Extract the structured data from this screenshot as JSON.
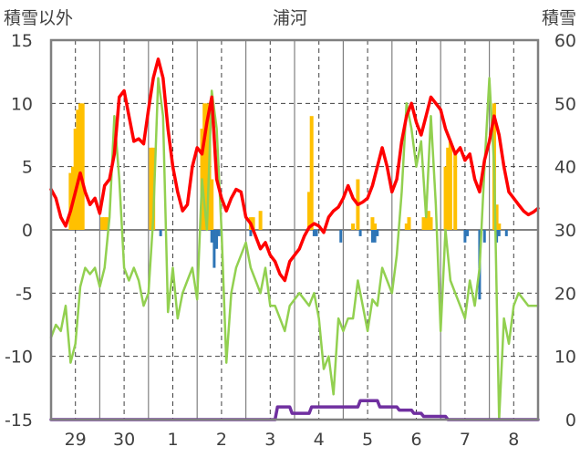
{
  "chart_data": {
    "type": "line",
    "title": "浦河",
    "left_axis_label": "積雪以外",
    "right_axis_label": "積雪",
    "left_ylim": [
      -15,
      15
    ],
    "right_ylim": [
      0,
      60
    ],
    "left_ticks": [
      "15",
      "10",
      "5",
      "0",
      "-5",
      "-10",
      "-15"
    ],
    "right_ticks": [
      "60",
      "50",
      "40",
      "30",
      "20",
      "10",
      "0"
    ],
    "x_range": [
      0,
      10
    ],
    "days": [
      "29",
      "30",
      "1",
      "2",
      "3",
      "4",
      "5",
      "6",
      "7",
      "8"
    ],
    "grid": true,
    "colors": {
      "temperature": "#ff0000",
      "wind": "#92d050",
      "precipitation": "#ffc000",
      "snow_change": "#2e75b6",
      "snow_depth": "#7030a0",
      "axis": "#7f7f7f",
      "grid": "#404040"
    },
    "series": [
      {
        "key": "temperature",
        "axis": "left",
        "x": [
          0,
          0.1,
          0.2,
          0.3,
          0.4,
          0.5,
          0.6,
          0.7,
          0.8,
          0.9,
          1.0,
          1.1,
          1.2,
          1.3,
          1.4,
          1.5,
          1.6,
          1.7,
          1.8,
          1.9,
          2.0,
          2.1,
          2.2,
          2.3,
          2.4,
          2.5,
          2.6,
          2.7,
          2.8,
          2.9,
          3.0,
          3.1,
          3.2,
          3.3,
          3.4,
          3.5,
          3.6,
          3.7,
          3.8,
          3.9,
          4.0,
          4.1,
          4.2,
          4.3,
          4.4,
          4.5,
          4.6,
          4.7,
          4.8,
          4.9,
          5.0,
          5.1,
          5.2,
          5.3,
          5.4,
          5.5,
          5.6,
          5.7,
          5.8,
          5.9,
          6.0,
          6.1,
          6.2,
          6.3,
          6.4,
          6.5,
          6.6,
          6.7,
          6.8,
          6.9,
          7.0,
          7.1,
          7.2,
          7.3,
          7.4,
          7.5,
          7.6,
          7.7,
          7.8,
          7.9,
          8.0,
          8.1,
          8.2,
          8.3,
          8.4,
          8.5,
          8.6,
          8.7,
          8.8,
          8.9,
          9.0,
          9.1,
          9.2,
          9.3,
          9.4,
          9.5,
          9.6,
          9.7,
          9.8,
          9.9,
          10.0
        ],
        "values": [
          3.2,
          2.5,
          1.0,
          0.3,
          1.5,
          3.0,
          4.5,
          3.0,
          2.0,
          2.5,
          1.3,
          3.5,
          4.0,
          6.0,
          10.5,
          11.0,
          9.0,
          7.0,
          7.2,
          6.8,
          9.5,
          12.0,
          13.5,
          12.0,
          8.0,
          5.0,
          3.0,
          1.5,
          2.0,
          5.0,
          6.5,
          6.0,
          8.5,
          10.5,
          4.0,
          2.5,
          1.5,
          2.5,
          3.2,
          3.0,
          1.0,
          0.5,
          -0.5,
          -1.5,
          -1.0,
          -2.0,
          -2.5,
          -3.5,
          -4.0,
          -2.5,
          -2.0,
          -1.5,
          -0.5,
          0.2,
          0.5,
          0.3,
          -0.2,
          1.0,
          1.5,
          1.8,
          2.5,
          3.5,
          2.5,
          2.0,
          2.2,
          2.5,
          3.5,
          5.0,
          6.5,
          5.0,
          3.0,
          4.0,
          7.0,
          9.0,
          10.0,
          8.5,
          7.5,
          9.0,
          10.5,
          10.0,
          9.5,
          8.0,
          7.0,
          6.0,
          6.5,
          5.5,
          6.0,
          4.0,
          3.0,
          5.5,
          7.0,
          9.0,
          7.5,
          5.0,
          3.0,
          2.5,
          2.0,
          1.5,
          1.2,
          1.4,
          1.7
        ]
      },
      {
        "key": "wind",
        "axis": "left",
        "x": [
          0,
          0.1,
          0.2,
          0.3,
          0.4,
          0.5,
          0.6,
          0.7,
          0.8,
          0.9,
          1.0,
          1.1,
          1.2,
          1.3,
          1.4,
          1.5,
          1.6,
          1.7,
          1.8,
          1.9,
          2.0,
          2.1,
          2.2,
          2.3,
          2.4,
          2.5,
          2.6,
          2.7,
          2.8,
          2.9,
          3.0,
          3.1,
          3.2,
          3.3,
          3.4,
          3.5,
          3.6,
          3.7,
          3.8,
          3.9,
          4.0,
          4.1,
          4.2,
          4.3,
          4.4,
          4.5,
          4.6,
          4.7,
          4.8,
          4.9,
          5.0,
          5.1,
          5.2,
          5.3,
          5.4,
          5.5,
          5.6,
          5.7,
          5.8,
          5.9,
          6.0,
          6.1,
          6.2,
          6.3,
          6.4,
          6.5,
          6.6,
          6.7,
          6.8,
          6.9,
          7.0,
          7.1,
          7.2,
          7.3,
          7.4,
          7.5,
          7.6,
          7.7,
          7.8,
          7.9,
          8.0,
          8.1,
          8.2,
          8.3,
          8.4,
          8.5,
          8.6,
          8.7,
          8.8,
          8.9,
          9.0,
          9.1,
          9.2,
          9.3,
          9.4,
          9.5,
          9.6,
          9.7,
          9.8,
          9.9,
          10.0
        ],
        "values": [
          -8.5,
          -7.5,
          -8.0,
          -6.0,
          -10.5,
          -9.0,
          -4.5,
          -3.0,
          -3.5,
          -3.0,
          -4.5,
          -3.0,
          1.0,
          9.0,
          4.0,
          -3.0,
          -4.0,
          -3.0,
          -4.0,
          -6.0,
          -5.0,
          1.0,
          12.0,
          9.0,
          -6.5,
          -3.0,
          -7.0,
          -5.0,
          -4.0,
          -3.0,
          -5.5,
          4.0,
          0.0,
          11.0,
          8.0,
          0.0,
          -10.5,
          -5.0,
          -3.0,
          -2.0,
          -1.0,
          -3.0,
          -4.0,
          -5.0,
          -3.0,
          -6.0,
          -6.0,
          -7.0,
          -8.0,
          -6.0,
          -5.5,
          -5.0,
          -5.5,
          -6.0,
          -5.0,
          -7.0,
          -11.0,
          -10.0,
          -13.0,
          -7.0,
          -8.0,
          -7.0,
          -7.0,
          -4.0,
          -6.0,
          -8.0,
          -5.5,
          -6.0,
          -3.0,
          -4.0,
          -5.0,
          -2.0,
          3.0,
          10.0,
          8.0,
          5.0,
          7.0,
          1.0,
          9.0,
          2.0,
          -8.0,
          0.0,
          -4.0,
          -5.0,
          -6.0,
          -7.0,
          -4.0,
          -6.0,
          -3.0,
          5.0,
          12.0,
          5.0,
          -15.0,
          -7.0,
          -9.0,
          -6.0,
          -5.0,
          -5.5,
          -6.0,
          -6.0,
          -6.0
        ]
      },
      {
        "key": "snow_depth",
        "axis": "right",
        "x": [
          0,
          4.6,
          4.65,
          4.9,
          4.95,
          5.3,
          5.35,
          6.3,
          6.35,
          6.7,
          6.75,
          7.1,
          7.15,
          7.4,
          7.45,
          7.6,
          7.65,
          7.9,
          7.95,
          8.1,
          8.15,
          10.0
        ],
        "values": [
          0,
          0,
          2,
          2,
          1,
          1,
          2,
          2,
          3,
          3,
          2,
          2,
          1.5,
          1.5,
          1,
          1,
          0.5,
          0.5,
          0.5,
          0.5,
          0,
          0
        ]
      }
    ],
    "precipitation_bars": {
      "axis": "left",
      "x": [
        0.4,
        0.45,
        0.5,
        0.55,
        0.6,
        0.65,
        1.05,
        1.1,
        1.15,
        2.05,
        2.1,
        3.1,
        3.15,
        3.2,
        3.25,
        3.3,
        4.1,
        4.15,
        4.3,
        5.3,
        5.35,
        6.2,
        6.3,
        6.6,
        6.65,
        7.3,
        7.35,
        7.65,
        7.7,
        7.75,
        7.8,
        8.1,
        8.15,
        8.2,
        8.3,
        9.1,
        9.15,
        9.2
      ],
      "values": [
        4.5,
        5.0,
        8.0,
        9.5,
        10.0,
        10.0,
        1.0,
        1.0,
        1.0,
        6.5,
        6.5,
        8.0,
        10.0,
        10.0,
        9.5,
        4.0,
        1.0,
        1.0,
        1.5,
        3.0,
        9.0,
        0.5,
        4.0,
        1.0,
        0.5,
        0.5,
        1.0,
        1.0,
        1.0,
        1.5,
        1.0,
        5.0,
        6.5,
        7.0,
        6.0,
        10.0,
        2.0,
        0.5
      ]
    },
    "snow_change_bars": {
      "axis": "left",
      "x": [
        2.25,
        3.3,
        3.35,
        3.4,
        3.45,
        4.1,
        5.4,
        5.45,
        5.95,
        6.35,
        6.6,
        6.65,
        6.7,
        8.5,
        8.55,
        8.8,
        8.9,
        9.15,
        9.2,
        9.35
      ],
      "values": [
        -0.5,
        -1.0,
        -3.0,
        -1.5,
        -0.5,
        -0.5,
        -0.5,
        -0.5,
        -1.0,
        -0.5,
        -1.0,
        -1.0,
        -0.5,
        -1.0,
        -0.5,
        -5.5,
        -1.0,
        -1.0,
        -0.5,
        -0.5
      ]
    }
  }
}
